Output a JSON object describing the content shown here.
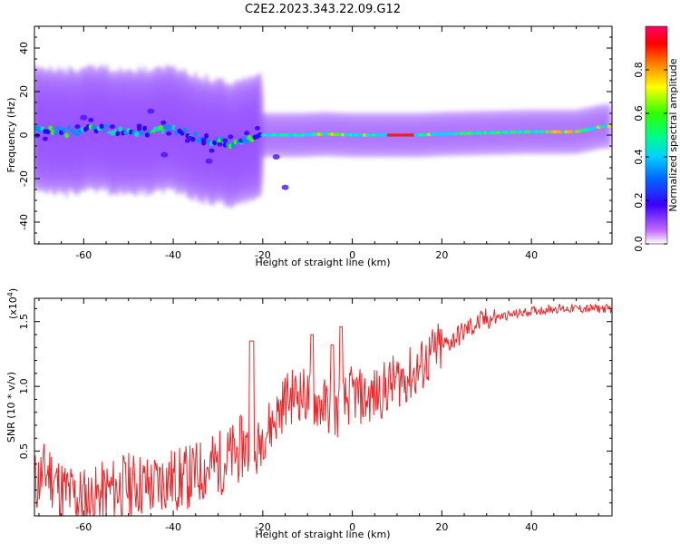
{
  "title": "C2E2.2023.343.22.09.G12",
  "spectrogram": {
    "chart_data": {
      "type": "heatmap",
      "xlabel": "Height of straight line (km)",
      "ylabel": "Frequency (Hz)",
      "xlim": [
        -71,
        58
      ],
      "ylim": [
        -50,
        50
      ],
      "xticks": [
        -60,
        -40,
        -20,
        0,
        20,
        40
      ],
      "yticks": [
        -40,
        -20,
        0,
        20,
        40
      ],
      "colorbar": {
        "label": "Normalized spectral amplitude",
        "range": [
          0.0,
          1.0
        ],
        "ticks": [
          0.0,
          0.2,
          0.4,
          0.6,
          0.8
        ]
      },
      "dominant_frequency_track": [
        [
          -70,
          2
        ],
        [
          -65,
          1
        ],
        [
          -60,
          3
        ],
        [
          -55,
          2
        ],
        [
          -50,
          3
        ],
        [
          -45,
          1
        ],
        [
          -40,
          2
        ],
        [
          -35,
          -1
        ],
        [
          -30,
          -3
        ],
        [
          -26,
          -4
        ],
        [
          -22,
          0
        ],
        [
          -18,
          0
        ],
        [
          -12,
          0
        ],
        [
          -6,
          0.5
        ],
        [
          0,
          0
        ],
        [
          5,
          0
        ],
        [
          10,
          0
        ],
        [
          15,
          0
        ],
        [
          20,
          0.5
        ],
        [
          30,
          1
        ],
        [
          40,
          1.5
        ],
        [
          50,
          1.5
        ],
        [
          56,
          4
        ]
      ]
    }
  },
  "snr": {
    "chart_data": {
      "type": "line",
      "xlabel": "Height of straight line (km)",
      "ylabel": "SNR (10 * v/v)",
      "y_multiplier": "(x10",
      "y_multiplier_exp": "4",
      "y_multiplier_close": ")",
      "xlim": [
        -71,
        58
      ],
      "ylim": [
        0,
        16800
      ],
      "xticks": [
        -60,
        -40,
        -20,
        0,
        20,
        40
      ],
      "yticks": [
        5000,
        10000,
        15000
      ],
      "ytick_labels": [
        "0.5",
        "1.0",
        "1.5"
      ],
      "series": [
        {
          "color": "#e8262a",
          "x": [
            -71,
            -68,
            -65,
            -62,
            -58,
            -55,
            -52,
            -48,
            -45,
            -42,
            -38,
            -35,
            -32,
            -29,
            -26,
            -24,
            -22,
            -20,
            -18,
            -15,
            -12,
            -9,
            -6,
            -3,
            0,
            3,
            6,
            10,
            14,
            18,
            22,
            26,
            30,
            35,
            40,
            45,
            50,
            55,
            58
          ],
          "y": [
            2500,
            3500,
            2000,
            1500,
            1200,
            1800,
            2200,
            2500,
            2200,
            2800,
            2800,
            3200,
            3800,
            4200,
            4800,
            5500,
            4000,
            6500,
            7000,
            9000,
            9500,
            9000,
            8500,
            8000,
            9500,
            9000,
            9500,
            10500,
            11000,
            12500,
            13500,
            14500,
            15200,
            15500,
            15800,
            16000,
            16000,
            16000,
            16000
          ]
        }
      ]
    }
  }
}
